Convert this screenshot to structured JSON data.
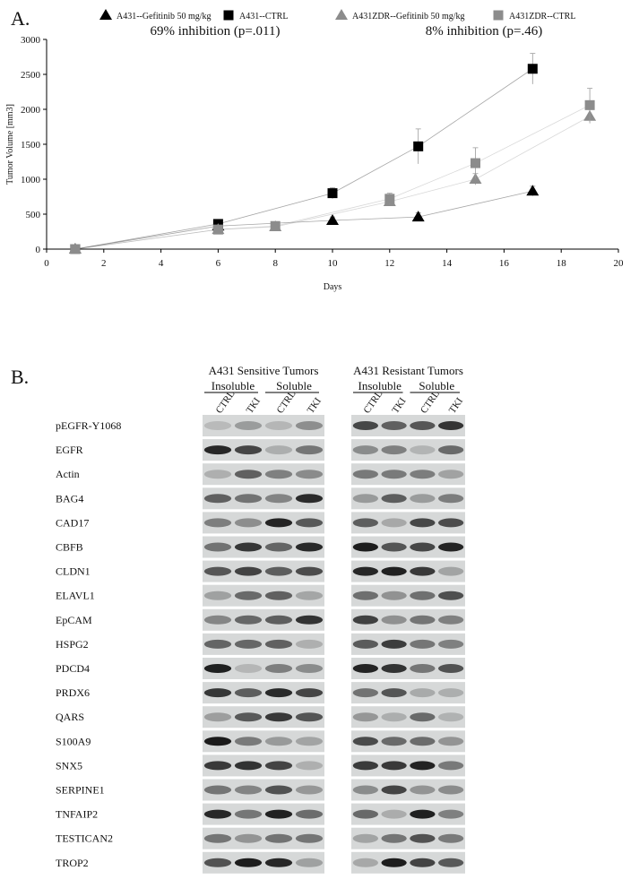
{
  "panel_labels": [
    "A.",
    "B."
  ],
  "chart_data": {
    "type": "scatter",
    "x_label": "Days",
    "y_label": "Tumor Volume [mm3]",
    "xlim": [
      0,
      20
    ],
    "xticks": [
      0,
      2,
      4,
      6,
      8,
      10,
      12,
      14,
      16,
      18,
      20
    ],
    "ylim": [
      0,
      3000
    ],
    "yticks": [
      0,
      500,
      1000,
      1500,
      2000,
      2500,
      3000
    ],
    "annotations": [
      "69% inhibition (p=.011)",
      "8% inhibition (p=.46)"
    ],
    "series": [
      {
        "name": "A431--Gefitinib 50 mg/kg",
        "color": "#000000",
        "marker": "triangle",
        "x": [
          1,
          6,
          10,
          13,
          17
        ],
        "values": [
          0,
          330,
          410,
          460,
          830
        ],
        "errors": [
          10,
          40,
          50,
          60,
          70
        ]
      },
      {
        "name": "A431--CTRL",
        "color": "#000000",
        "marker": "square",
        "x": [
          1,
          6,
          10,
          13,
          17
        ],
        "values": [
          0,
          360,
          800,
          1470,
          2580
        ],
        "errors": [
          10,
          50,
          80,
          250,
          220
        ]
      },
      {
        "name": "A431ZDR--Gefitinib 50 mg/kg",
        "color": "#8c8c8c",
        "marker": "triangle",
        "x": [
          1,
          6,
          8,
          12,
          15,
          19
        ],
        "values": [
          0,
          280,
          320,
          680,
          1000,
          1900
        ],
        "errors": [
          10,
          30,
          40,
          60,
          80,
          100
        ]
      },
      {
        "name": "A431ZDR--CTRL",
        "color": "#8c8c8c",
        "marker": "square",
        "x": [
          1,
          6,
          8,
          12,
          15,
          19
        ],
        "values": [
          0,
          280,
          330,
          720,
          1230,
          2060
        ],
        "errors": [
          10,
          30,
          40,
          80,
          220,
          240
        ]
      }
    ]
  },
  "blots": {
    "panels": [
      {
        "title": "A431 Sensitive Tumors",
        "groups": [
          "Insoluble",
          "Soluble"
        ],
        "lanes": [
          "CTRL",
          "TKI",
          "CTRL",
          "TKI"
        ]
      },
      {
        "title": "A431 Resistant Tumors",
        "groups": [
          "Insoluble",
          "Soluble"
        ],
        "lanes": [
          "CTRL",
          "TKI",
          "CTRL",
          "TKI"
        ]
      }
    ],
    "proteins": [
      "pEGFR-Y1068",
      "EGFR",
      "Actin",
      "BAG4",
      "CAD17",
      "CBFB",
      "CLDN1",
      "ELAVL1",
      "EpCAM",
      "HSPG2",
      "PDCD4",
      "PRDX6",
      "QARS",
      "S100A9",
      "SNX5",
      "SERPINE1",
      "TNFAIP2",
      "TESTICAN2",
      "TROP2"
    ]
  }
}
